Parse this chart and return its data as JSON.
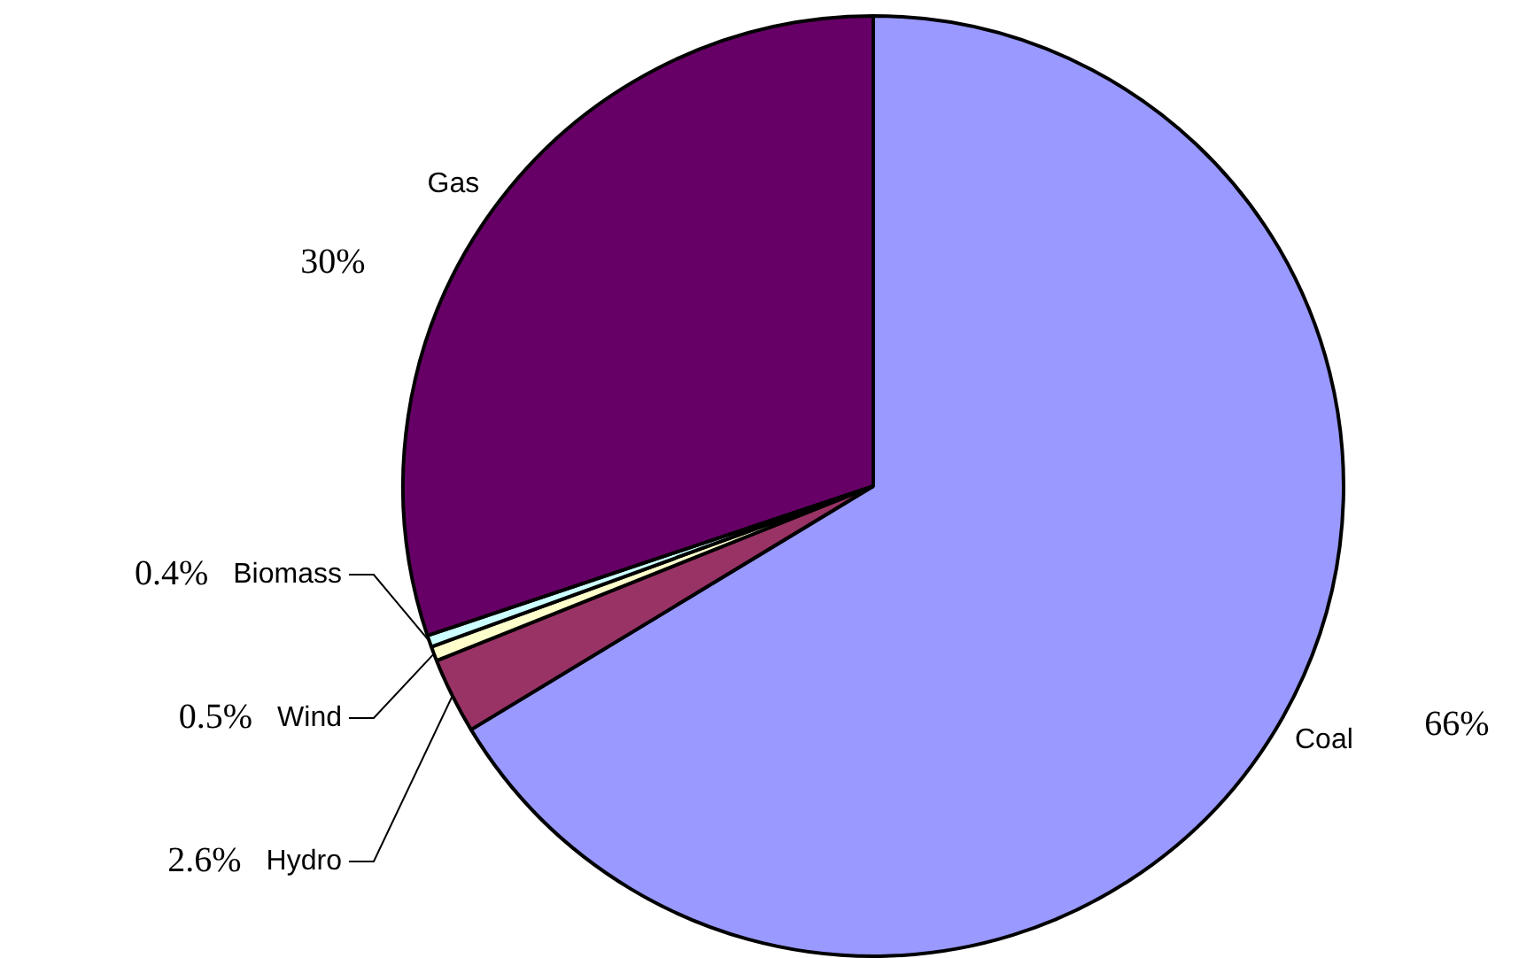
{
  "chart_data": {
    "type": "pie",
    "categories": [
      "Coal",
      "Hydro",
      "Wind",
      "Biomass",
      "Gas"
    ],
    "values": [
      66,
      2.6,
      0.5,
      0.4,
      30
    ],
    "colors": [
      "#9999ff",
      "#993366",
      "#ffffcc",
      "#ccffff",
      "#660066"
    ],
    "value_labels": [
      "66%",
      "2.6%",
      "0.5%",
      "0.4%",
      "30%"
    ],
    "legend": false
  }
}
